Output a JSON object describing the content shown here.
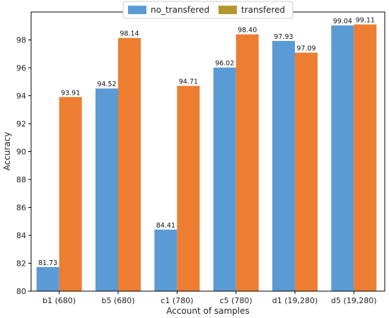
{
  "chart_data": {
    "type": "bar",
    "title": "",
    "xlabel": "Account of samples",
    "ylabel": "Accuracy",
    "categories": [
      "b1 (680)",
      "b5 (680)",
      "c1 (780)",
      "c5 (780)",
      "d1 (19,280)",
      "d5 (19,280)"
    ],
    "series": [
      {
        "name": "no_transfered",
        "color": "#5b9bd5",
        "values": [
          81.73,
          94.52,
          84.41,
          96.02,
          97.93,
          99.04
        ],
        "labels": [
          "81.73",
          "94.52",
          "84.41",
          "96.02",
          "97.93",
          "99.04"
        ]
      },
      {
        "name": "transfered",
        "color": "#ed7d31",
        "legend_color": "#b8962e",
        "values": [
          93.91,
          98.14,
          94.71,
          98.4,
          97.09,
          99.11
        ],
        "labels": [
          "93.91",
          "98.14",
          "94.71",
          "98.40",
          "97.09",
          "99.11"
        ]
      }
    ],
    "ylim": [
      80,
      100
    ],
    "yticks": [
      "80",
      "82",
      "84",
      "86",
      "88",
      "90",
      "92",
      "94",
      "96",
      "98"
    ],
    "grid": false,
    "legend_position": "top-center"
  }
}
